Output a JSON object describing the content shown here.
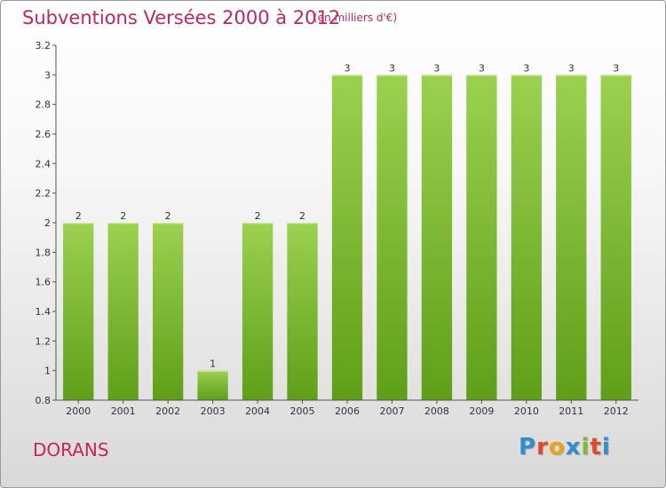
{
  "header": {
    "title": "Subventions Versées 2000 à 2012",
    "unit": "(en milliers d'€)"
  },
  "footer": {
    "commune": "DORANS",
    "logo_letters": [
      "P",
      "r",
      "o",
      "x",
      "i",
      "t",
      "i"
    ],
    "logo_colors": [
      "#2f8ed0",
      "#e2462b",
      "#f0a11c",
      "#2f8ed0",
      "#7bbf2a",
      "#e2462b",
      "#2f8ed0"
    ]
  },
  "colors": {
    "bar_light": "#9bd14f",
    "bar_dark": "#5f9f18",
    "title": "#c8245c",
    "axis": "#555555"
  },
  "chart_data": {
    "type": "bar",
    "title": "Subventions Versées 2000 à 2012",
    "subtitle": "(en milliers d'€)",
    "xlabel": "",
    "ylabel": "",
    "categories": [
      "2000",
      "2001",
      "2002",
      "2003",
      "2004",
      "2005",
      "2006",
      "2007",
      "2008",
      "2009",
      "2010",
      "2011",
      "2012"
    ],
    "values": [
      2,
      2,
      2,
      1,
      2,
      2,
      3,
      3,
      3,
      3,
      3,
      3,
      3
    ],
    "data_labels": [
      "2",
      "2",
      "2",
      "1",
      "2",
      "2",
      "3",
      "3",
      "3",
      "3",
      "3",
      "3",
      "3"
    ],
    "yticks": [
      0.8,
      1,
      1.2,
      1.4,
      1.6,
      1.8,
      2,
      2.2,
      2.4,
      2.6,
      2.8,
      3,
      3.2
    ],
    "ytick_labels": [
      "0.8",
      "1",
      "1.2",
      "1.4",
      "1.6",
      "1.8",
      "2",
      "2.2",
      "2.4",
      "2.6",
      "2.8",
      "3",
      "3.2"
    ],
    "ylim": [
      0.8,
      3.2
    ],
    "grid": false,
    "legend": "none"
  }
}
